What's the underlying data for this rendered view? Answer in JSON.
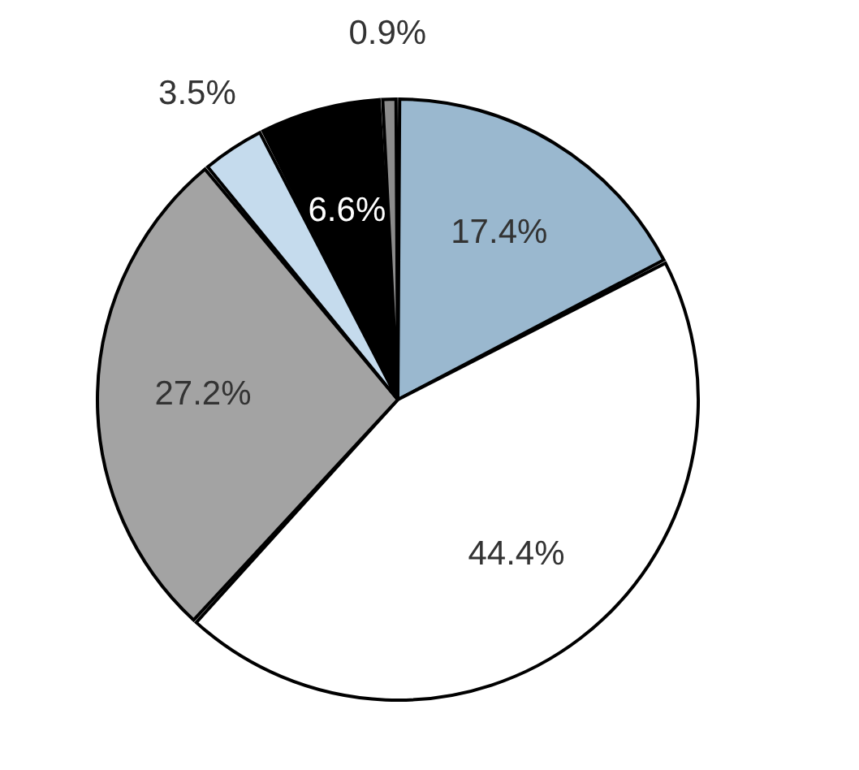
{
  "chart_data": {
    "type": "pie",
    "categories": [
      null,
      null,
      null,
      null,
      null,
      null
    ],
    "values": [
      17.4,
      44.4,
      27.2,
      3.5,
      6.6,
      0.9
    ],
    "colors": [
      "#9ab8cf",
      "#ffffff",
      "#a3a3a3",
      "#c5dbed",
      "#000000",
      "#8c8c8c"
    ],
    "value_labels": [
      "17.4%",
      "44.4%",
      "27.2%",
      "3.5%",
      "6.6%",
      "0.9%"
    ],
    "legend": false
  }
}
